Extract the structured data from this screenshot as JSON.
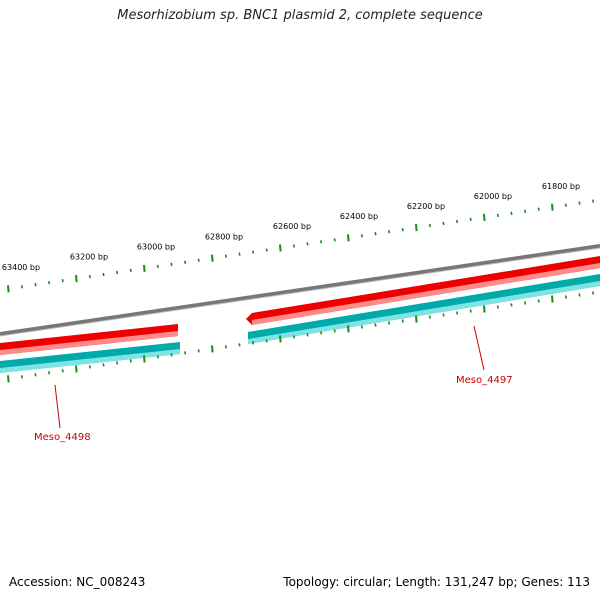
{
  "title": "Mesorhizobium sp. BNC1 plasmid 2, complete sequence",
  "footer": {
    "accession": "Accession: NC_008243",
    "summary": "Topology: circular; Length: 131,247 bp; Genes: 113"
  },
  "colors": {
    "backbone": "#808080",
    "gene_forward": "#ff0000",
    "gene_highlight": "#ff9999",
    "cds": "#00b5b5",
    "cds_highlight": "#80e8e8",
    "ticks": "#1a8a1a",
    "gene_label": "#cc0000"
  },
  "scale_labels": [
    "63400 bp",
    "63200 bp",
    "63000 bp",
    "62800 bp",
    "62600 bp",
    "62400 bp",
    "62200 bp",
    "62000 bp",
    "61800 bp"
  ],
  "genes": [
    {
      "label": "Meso_4498"
    },
    {
      "label": "Meso_4497"
    }
  ]
}
